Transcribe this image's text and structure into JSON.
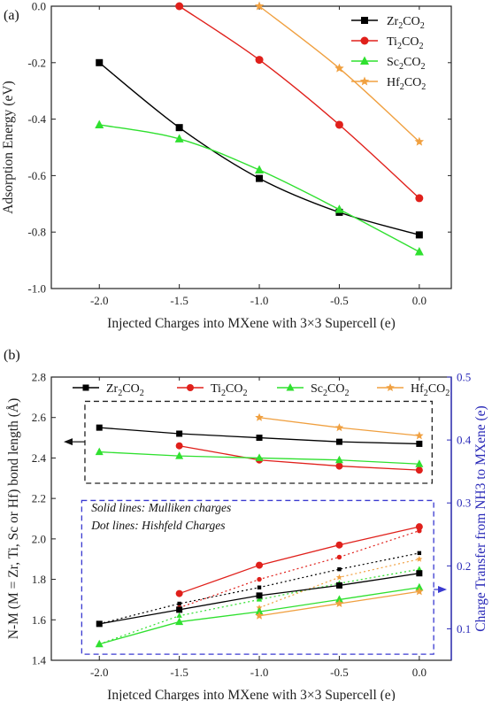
{
  "chart_data": [
    {
      "type": "line",
      "panel_label": "(a)",
      "xlabel": "Injected Charges into MXene with 3×3 Supercell (e)",
      "ylabel": "Adsorption Energy (eV)",
      "xlim": [
        -2.3,
        0.2
      ],
      "ylim": [
        -1.0,
        0.0
      ],
      "xticks": [
        -2.0,
        -1.5,
        -1.0,
        -0.5,
        0.0
      ],
      "xtick_labels": [
        "-2.0",
        "-1.5",
        "-1.0",
        "-0.5",
        "0.0"
      ],
      "yticks": [
        -1.0,
        -0.8,
        -0.6,
        -0.4,
        -0.2,
        0.0
      ],
      "ytick_labels": [
        "-1.0",
        "-0.8",
        "-0.6",
        "-0.4",
        "-0.2",
        "0.0"
      ],
      "legend_position": "top-right",
      "series": [
        {
          "name": "Zr2CO2",
          "label_html": [
            "Zr",
            "2",
            "CO",
            "2"
          ],
          "color": "#000000",
          "marker": "square",
          "x": [
            -2.0,
            -1.5,
            -1.0,
            -0.5,
            0.0
          ],
          "y": [
            -0.2,
            -0.43,
            -0.61,
            -0.73,
            -0.81
          ]
        },
        {
          "name": "Ti2CO2",
          "label_html": [
            "Ti",
            "2",
            "CO",
            "2"
          ],
          "color": "#e0201b",
          "marker": "circle",
          "x": [
            -1.5,
            -1.0,
            -0.5,
            0.0
          ],
          "y": [
            0.0,
            -0.19,
            -0.42,
            -0.68
          ]
        },
        {
          "name": "Sc2CO2",
          "label_html": [
            "Sc",
            "2",
            "CO",
            "2"
          ],
          "color": "#2fe02f",
          "marker": "triangle",
          "x": [
            -2.0,
            -1.5,
            -1.0,
            -0.5,
            0.0
          ],
          "y": [
            -0.42,
            -0.47,
            -0.58,
            -0.72,
            -0.87
          ]
        },
        {
          "name": "Hf2CO2",
          "label_html": [
            "Hf",
            "2",
            "CO",
            "2"
          ],
          "color": "#f0a040",
          "marker": "star",
          "x": [
            -1.0,
            -0.5,
            0.0
          ],
          "y": [
            0.0,
            -0.22,
            -0.48
          ]
        }
      ]
    },
    {
      "type": "line",
      "panel_label": "(b)",
      "xlabel": "Injetced Charges into MXene with 3×3 Supercell (e)",
      "ylabel": "N-M (M = Zr, Ti, Sc or Hf) bond length (Å)",
      "ylabel_right": "Charge Transfer from NH3 to MXene (e)",
      "xlim": [
        -2.3,
        0.2
      ],
      "ylim": [
        1.4,
        2.8
      ],
      "ylim_right": [
        0.05,
        0.5
      ],
      "xticks": [
        -2.0,
        -1.5,
        -1.0,
        -0.5,
        0.0
      ],
      "xtick_labels": [
        "-2.0",
        "-1.5",
        "-1.0",
        "-0.5",
        "0.0"
      ],
      "yticks": [
        1.4,
        1.6,
        1.8,
        2.0,
        2.2,
        2.4,
        2.6,
        2.8
      ],
      "ytick_labels": [
        "1.4",
        "1.6",
        "1.8",
        "2.0",
        "2.2",
        "2.4",
        "2.6",
        "2.8"
      ],
      "yticks_right": [
        0.1,
        0.2,
        0.3,
        0.4,
        0.5
      ],
      "ytick_labels_right": [
        "0.1",
        "0.2",
        "0.3",
        "0.4",
        "0.5"
      ],
      "legend_position": "top",
      "annotation_lines": [
        "Solid lines: Mulliken charges",
        "Dot lines: Hishfeld Charges"
      ],
      "bond_length_series": [
        {
          "name": "Zr2CO2",
          "color": "#000000",
          "marker": "square",
          "x": [
            -2.0,
            -1.5,
            -1.0,
            -0.5,
            0.0
          ],
          "y": [
            2.55,
            2.52,
            2.5,
            2.48,
            2.47
          ]
        },
        {
          "name": "Ti2CO2",
          "color": "#e0201b",
          "marker": "circle",
          "x": [
            -1.5,
            -1.0,
            -0.5,
            0.0
          ],
          "y": [
            2.46,
            2.39,
            2.36,
            2.34
          ]
        },
        {
          "name": "Sc2CO2",
          "color": "#2fe02f",
          "marker": "triangle",
          "x": [
            -2.0,
            -1.5,
            -1.0,
            -0.5,
            0.0
          ],
          "y": [
            2.43,
            2.41,
            2.4,
            2.39,
            2.37
          ]
        },
        {
          "name": "Hf2CO2",
          "color": "#f0a040",
          "marker": "star",
          "x": [
            -1.0,
            -0.5,
            0.0
          ],
          "y": [
            2.6,
            2.55,
            2.51
          ]
        }
      ],
      "mulliken_series": [
        {
          "name": "Zr2CO2",
          "color": "#000000",
          "marker": "square",
          "x": [
            -2.0,
            -1.5,
            -1.0,
            -0.5,
            0.0
          ],
          "y": [
            1.58,
            1.65,
            1.72,
            1.77,
            1.83
          ]
        },
        {
          "name": "Ti2CO2",
          "color": "#e0201b",
          "marker": "circle",
          "x": [
            -1.5,
            -1.0,
            -0.5,
            0.0
          ],
          "y": [
            1.73,
            1.87,
            1.97,
            2.06
          ]
        },
        {
          "name": "Sc2CO2",
          "color": "#2fe02f",
          "marker": "triangle",
          "x": [
            -2.0,
            -1.5,
            -1.0,
            -0.5,
            0.0
          ],
          "y": [
            1.48,
            1.59,
            1.64,
            1.7,
            1.76
          ]
        },
        {
          "name": "Hf2CO2",
          "color": "#f0a040",
          "marker": "star",
          "x": [
            -1.0,
            -0.5,
            0.0
          ],
          "y": [
            1.62,
            1.68,
            1.74
          ]
        }
      ],
      "hirshfeld_series": [
        {
          "name": "Zr2CO2",
          "color": "#000000",
          "marker": "square",
          "x": [
            -2.0,
            -1.5,
            -1.0,
            -0.5,
            0.0
          ],
          "y": [
            1.58,
            1.68,
            1.76,
            1.85,
            1.93
          ]
        },
        {
          "name": "Ti2CO2",
          "color": "#e0201b",
          "marker": "circle",
          "x": [
            -1.5,
            -1.0,
            -0.5,
            0.0
          ],
          "y": [
            1.66,
            1.8,
            1.91,
            2.04
          ]
        },
        {
          "name": "Sc2CO2",
          "color": "#2fe02f",
          "marker": "triangle",
          "x": [
            -2.0,
            -1.5,
            -1.0,
            -0.5,
            0.0
          ],
          "y": [
            1.48,
            1.62,
            1.7,
            1.78,
            1.85
          ]
        },
        {
          "name": "Hf2CO2",
          "color": "#f0a040",
          "marker": "star",
          "x": [
            -1.0,
            -0.5,
            0.0
          ],
          "y": [
            1.66,
            1.81,
            1.9
          ]
        }
      ]
    }
  ]
}
